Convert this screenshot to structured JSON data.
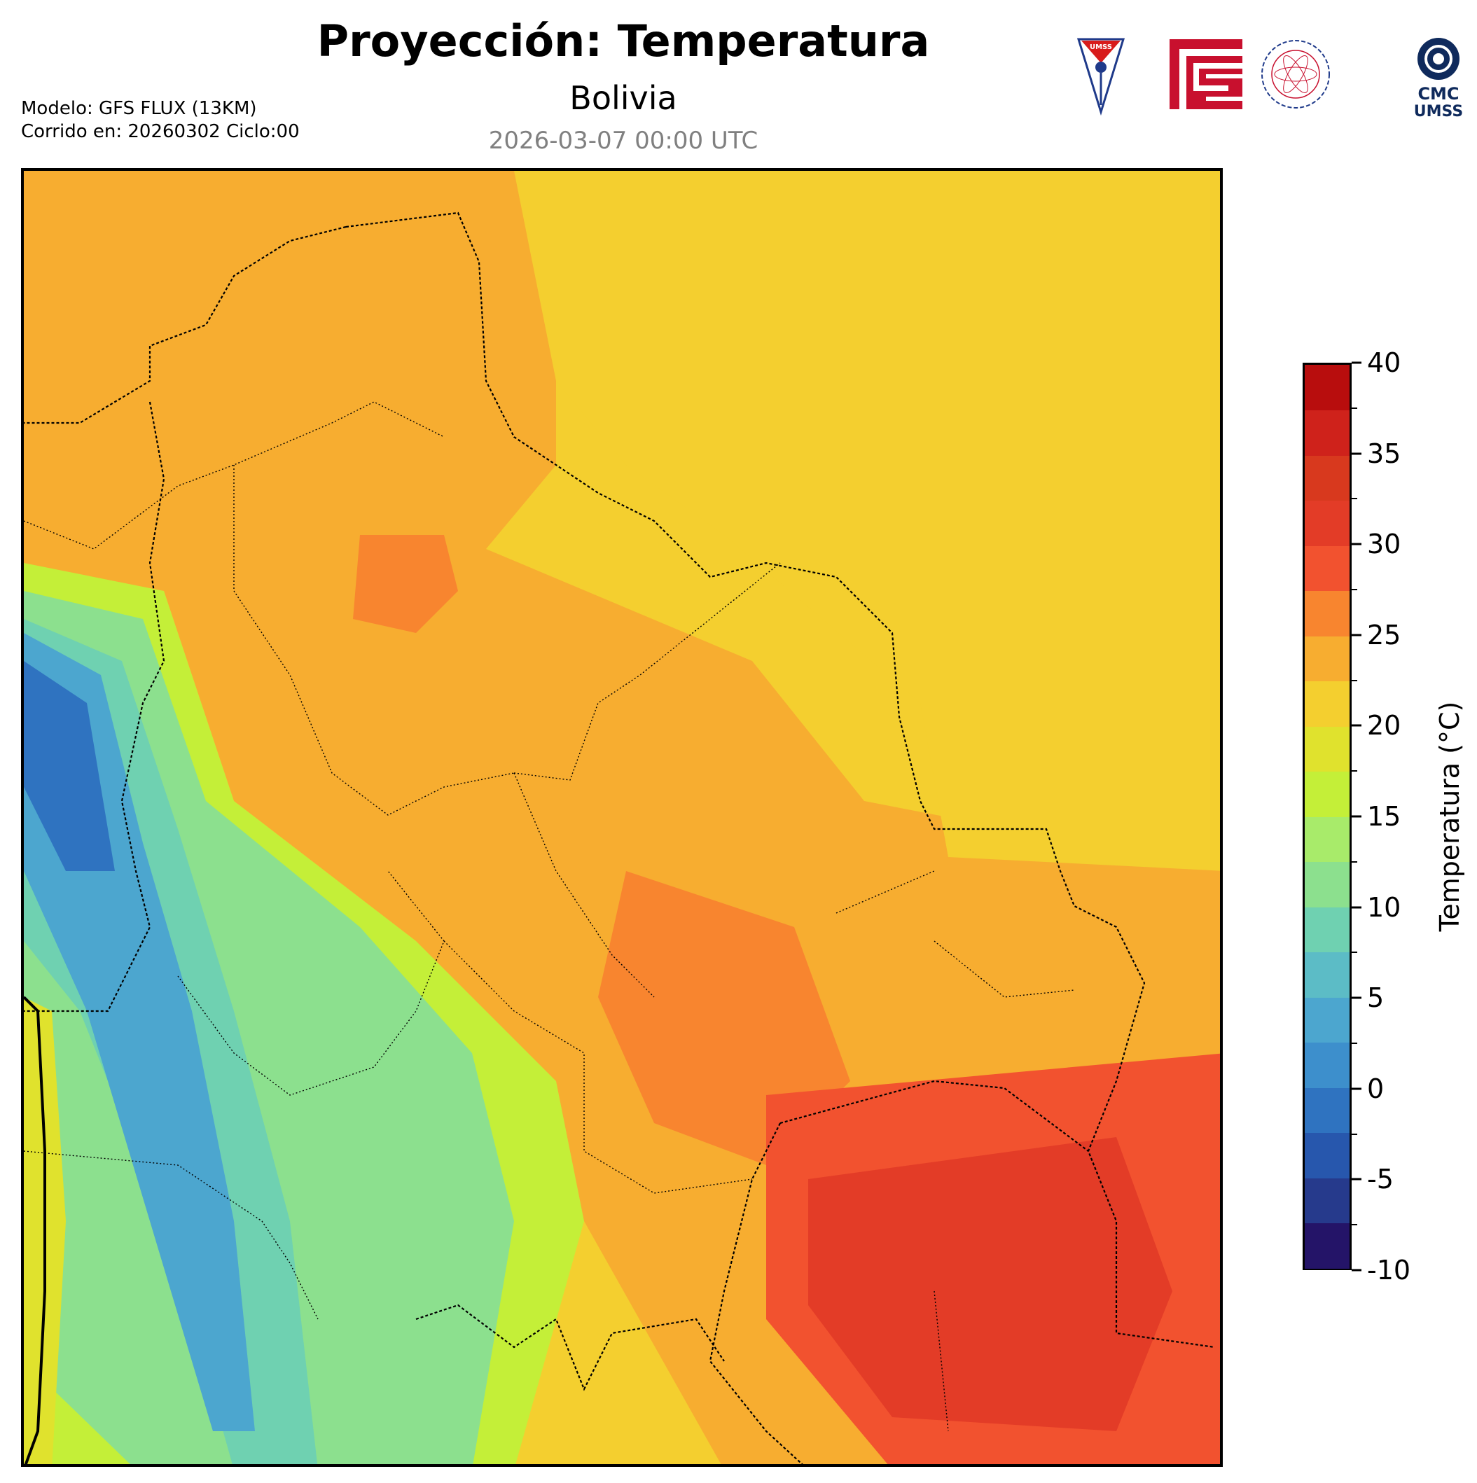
{
  "header": {
    "title": "Proyección: Temperatura",
    "region": "Bolivia",
    "valid_time": "2026-03-07 00:00 UTC",
    "model_line": "Modelo: GFS FLUX (13KM)",
    "run_line": "Corrido en: 20260302 Ciclo:00"
  },
  "logos": {
    "umss_label": "UMSS",
    "cmc_line1": "CMC",
    "cmc_line2": "UMSS"
  },
  "colorbar": {
    "label": "Temperatura (°C)",
    "min": -10,
    "max": 40,
    "major_ticks": [
      "-10",
      "-5",
      "0",
      "5",
      "10",
      "15",
      "20",
      "25",
      "30",
      "35",
      "40"
    ],
    "colors": [
      "#241468",
      "#263a8c",
      "#2757ad",
      "#2f73c0",
      "#3d8fcc",
      "#4ca6cf",
      "#5cbcc6",
      "#6fd1b1",
      "#8ce08e",
      "#a8eb6a",
      "#c4ef38",
      "#e0e22d",
      "#f4cf2f",
      "#f7ad30",
      "#f8852f",
      "#f2522f",
      "#e33c27",
      "#d8391e",
      "#cf221b",
      "#b80d0d"
    ]
  },
  "map": {
    "land_colors": {
      "warm": "#f4cf2f",
      "hot": "#f7ad30",
      "very_hot": "#f8852f",
      "extreme": "#e33c27",
      "cool": "#a8eb6a",
      "cold": "#6fd1b1",
      "very_cold": "#4ca6cf",
      "frigid": "#2f73c0"
    }
  }
}
